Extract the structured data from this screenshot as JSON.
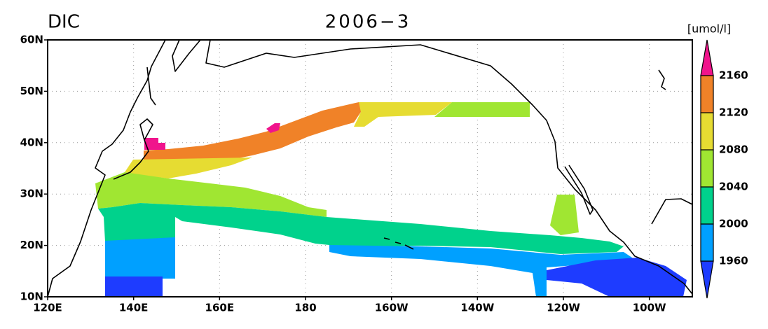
{
  "title_left": "DIC",
  "title_center": "2006−3",
  "units": "[umol/l]",
  "lon_labels": [
    "120E",
    "140E",
    "160E",
    "180",
    "160W",
    "140W",
    "120W",
    "100W"
  ],
  "lat_labels": [
    "60N",
    "50N",
    "40N",
    "30N",
    "20N",
    "10N"
  ],
  "colorbar": {
    "levels": [
      1960,
      2000,
      2040,
      2080,
      2120,
      2160
    ],
    "colors": [
      "#1e3cff",
      "#00a0ff",
      "#00d28c",
      "#a0e632",
      "#e6dc32",
      "#f08228",
      "#f0148c"
    ]
  }
}
